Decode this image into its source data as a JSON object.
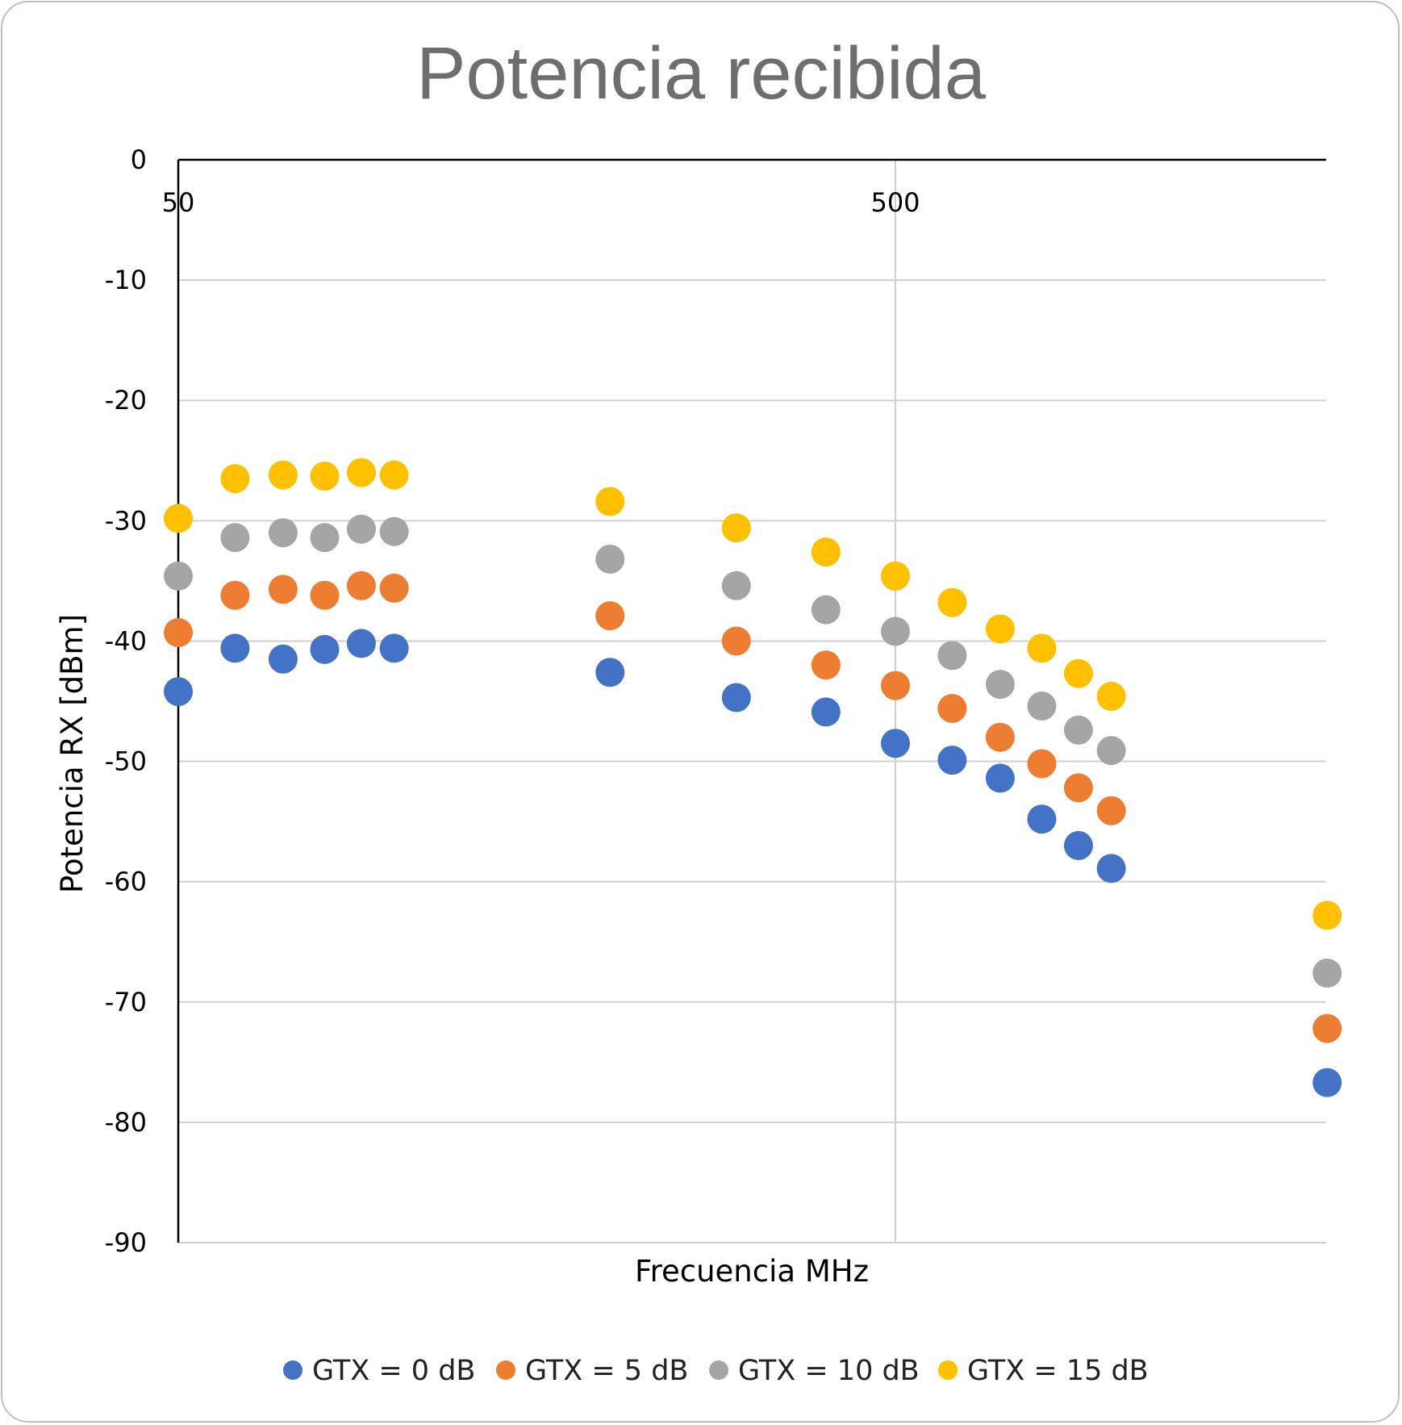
{
  "chart_data": {
    "type": "scatter",
    "title": "Potencia recibida",
    "xlabel": "Frecuencia MHz",
    "ylabel": "Potencia RX [dBm]",
    "x_scale": "log",
    "xlim": [
      50,
      2000
    ],
    "ylim": [
      -90,
      0
    ],
    "x_ticks": [
      "50",
      "500"
    ],
    "y_ticks": [
      "0",
      "-10",
      "-20",
      "-30",
      "-40",
      "-50",
      "-60",
      "-70",
      "-80",
      "-90"
    ],
    "y_tick_values": [
      0,
      -10,
      -20,
      -30,
      -40,
      -50,
      -60,
      -70,
      -80,
      -90
    ],
    "x_tick_values": [
      50,
      500
    ],
    "grid": true,
    "legend_position": "bottom",
    "x": [
      50,
      60,
      70,
      80,
      90,
      100,
      200,
      300,
      400,
      500,
      600,
      700,
      800,
      900,
      1000,
      2000
    ],
    "series": [
      {
        "name": "GTX = 0 dB",
        "color": "#4472c4",
        "values": [
          -44.2,
          -40.6,
          -41.5,
          -40.7,
          -40.2,
          -40.6,
          -42.6,
          -44.7,
          -45.9,
          -48.5,
          -49.9,
          -51.4,
          -54.8,
          -57.0,
          -58.9,
          -76.7
        ]
      },
      {
        "name": "GTX = 5 dB",
        "color": "#ed7d31",
        "values": [
          -39.3,
          -36.2,
          -35.7,
          -36.2,
          -35.4,
          -35.6,
          -37.9,
          -40.0,
          -42.0,
          -43.7,
          -45.6,
          -48.0,
          -50.2,
          -52.2,
          -54.1,
          -72.2
        ]
      },
      {
        "name": "GTX = 10 dB",
        "color": "#a5a5a5",
        "values": [
          -34.6,
          -31.4,
          -31.0,
          -31.4,
          -30.7,
          -30.9,
          -33.2,
          -35.4,
          -37.4,
          -39.2,
          -41.2,
          -43.6,
          -45.4,
          -47.4,
          -49.1,
          -67.6
        ]
      },
      {
        "name": "GTX = 15 dB",
        "color": "#ffc000",
        "values": [
          -29.8,
          -26.5,
          -26.2,
          -26.3,
          -26.0,
          -26.2,
          -28.4,
          -30.6,
          -32.6,
          -34.6,
          -36.8,
          -39.0,
          -40.6,
          -42.7,
          -44.6,
          -62.8
        ]
      }
    ]
  }
}
